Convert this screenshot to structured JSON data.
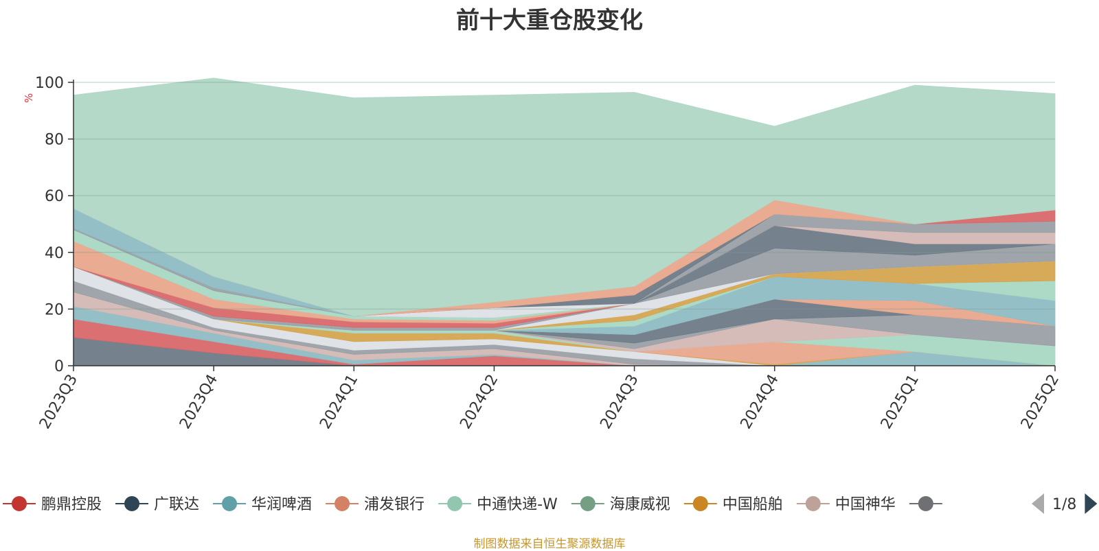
{
  "chart_data": {
    "type": "area",
    "title": "前十大重仓股变化",
    "ylabel": "%",
    "ylim": [
      0,
      100
    ],
    "yticks": [
      0,
      20,
      40,
      60,
      80,
      100
    ],
    "grid": true,
    "x": [
      "2023Q3",
      "2023Q4",
      "2024Q1",
      "2024Q2",
      "2024Q3",
      "2024Q4",
      "2025Q1",
      "2025Q2"
    ],
    "series": [
      {
        "name": "",
        "color": "#6e7a86",
        "values": [
          10,
          4.5,
          0,
          0,
          0,
          0,
          0,
          0
        ]
      },
      {
        "name": "",
        "color": "#d9686a",
        "values": [
          6.5,
          4,
          0.5,
          3.5,
          0,
          0,
          0,
          0
        ]
      },
      {
        "name": "",
        "color": "#8fbcc4",
        "values": [
          4.5,
          3,
          1.5,
          0.5,
          0,
          0,
          5,
          0
        ]
      },
      {
        "name": "",
        "color": "#d4b8b4",
        "values": [
          5,
          1,
          2,
          2,
          0.5,
          0,
          0,
          0
        ]
      },
      {
        "name": "",
        "color": "#9aa0a6",
        "values": [
          4,
          1,
          1.5,
          1.5,
          2,
          0,
          0,
          0
        ]
      },
      {
        "name": "",
        "color": "#dde0e5",
        "values": [
          5,
          3,
          3,
          2,
          2.5,
          0,
          0,
          0
        ]
      },
      {
        "name": "",
        "color": "#d4a550",
        "values": [
          0,
          0,
          3,
          2,
          0,
          0.5,
          0,
          0
        ]
      },
      {
        "name": "",
        "color": "#e8a78c",
        "values": [
          0,
          0,
          0,
          0,
          0,
          8,
          0,
          0
        ]
      },
      {
        "name": "",
        "color": "#a9d8c3",
        "values": [
          0,
          0,
          1,
          1,
          0,
          0,
          6,
          7
        ]
      },
      {
        "name": "",
        "color": "#d4b8b4",
        "values": [
          0,
          0,
          0,
          0,
          1,
          8,
          0,
          0
        ]
      },
      {
        "name": "",
        "color": "#9aa0a6",
        "values": [
          0,
          0,
          0,
          0,
          2,
          0,
          7,
          7
        ]
      },
      {
        "name": "",
        "color": "#6e7a86",
        "values": [
          0,
          0,
          0,
          0,
          3,
          7,
          0,
          0
        ]
      },
      {
        "name": "",
        "color": "#e8a78c",
        "values": [
          0,
          0,
          0,
          0,
          0,
          0,
          5,
          0
        ]
      },
      {
        "name": "",
        "color": "#8fbcc4",
        "values": [
          0,
          0,
          0,
          0,
          3,
          8,
          6,
          9
        ]
      },
      {
        "name": "",
        "color": "#a9d8c3",
        "values": [
          0,
          0,
          0,
          0,
          2,
          0,
          0,
          7
        ]
      },
      {
        "name": "",
        "color": "#d4a550",
        "values": [
          0,
          0,
          0,
          0,
          2,
          1,
          6,
          7
        ]
      },
      {
        "name": "",
        "color": "#dde0e5",
        "values": [
          0,
          0,
          0,
          0,
          4,
          0,
          0,
          0
        ]
      },
      {
        "name": "",
        "color": "#9aa0a6",
        "values": [
          0,
          1,
          1,
          1,
          0,
          9,
          4,
          6
        ]
      },
      {
        "name": "",
        "color": "#6e7a86",
        "values": [
          0,
          0,
          0,
          0,
          0,
          8,
          4,
          0
        ]
      },
      {
        "name": "",
        "color": "#d4b8b4",
        "values": [
          0,
          0,
          0,
          0,
          0,
          0,
          4,
          4
        ]
      },
      {
        "name": "",
        "color": "#9aa0a6",
        "values": [
          0,
          0,
          0,
          0,
          0,
          4,
          3,
          4
        ]
      },
      {
        "name": "",
        "color": "#d9686a",
        "values": [
          0,
          3,
          2,
          1.5,
          0,
          0,
          0,
          4
        ]
      },
      {
        "name": "",
        "color": "#e8a78c",
        "values": [
          9,
          3,
          1,
          1,
          0,
          0,
          0,
          0
        ]
      },
      {
        "name": "",
        "color": "#a9d8c3",
        "values": [
          4,
          3,
          1,
          1,
          0,
          0,
          0,
          0
        ]
      },
      {
        "name": "",
        "color": "#9aa0a6",
        "values": [
          0.5,
          1,
          0,
          0,
          0,
          0,
          0,
          0
        ]
      },
      {
        "name": "",
        "color": "#8fbcc4",
        "values": [
          7,
          4,
          0,
          0,
          0,
          0,
          0,
          0
        ]
      },
      {
        "name": "",
        "color": "#dde0e5",
        "values": [
          0,
          0,
          0,
          3.5,
          0,
          0,
          0,
          0
        ]
      },
      {
        "name": "",
        "color": "#6e7a86",
        "values": [
          0,
          0,
          0,
          0,
          3,
          0,
          0,
          0
        ]
      },
      {
        "name": "",
        "color": "#e8a78c",
        "values": [
          0,
          0,
          0,
          2,
          3,
          5,
          0,
          0
        ]
      },
      {
        "name": "",
        "color": "#b0d7c6",
        "values": [
          40,
          70,
          77,
          73,
          68.5,
          26,
          49,
          41
        ]
      }
    ],
    "legend": {
      "placement": "bottom",
      "items": [
        {
          "label": "鹏鼎控股",
          "color": "#c23531"
        },
        {
          "label": "广联达",
          "color": "#2f4554"
        },
        {
          "label": "华润啤酒",
          "color": "#61a0a8"
        },
        {
          "label": "浦发银行",
          "color": "#d48265"
        },
        {
          "label": "中通快递-W",
          "color": "#91c7ae"
        },
        {
          "label": "海康威视",
          "color": "#749f83"
        },
        {
          "label": "中国船舶",
          "color": "#ca8622"
        },
        {
          "label": "中国神华",
          "color": "#bda29a"
        },
        {
          "label": "",
          "color": "#6e7074"
        }
      ],
      "page": "1/8"
    },
    "source_note": "制图数据来自恒生聚源数据库"
  }
}
